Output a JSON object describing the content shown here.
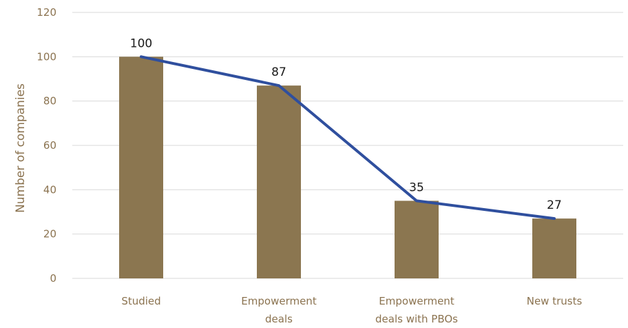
{
  "chart_data": {
    "type": "bar",
    "categories": [
      [
        "Studied"
      ],
      [
        "Empowerment",
        "deals"
      ],
      [
        "Empowerment",
        "deals with PBOs"
      ],
      [
        "New trusts"
      ]
    ],
    "series": [
      {
        "kind": "bar",
        "values": [
          100,
          87,
          35,
          27
        ]
      },
      {
        "kind": "line",
        "values": [
          100,
          87,
          35,
          27
        ]
      }
    ],
    "data_labels": [
      "100",
      "87",
      "35",
      "27"
    ],
    "title": "",
    "xlabel": "",
    "ylabel": "Number of companies",
    "ylim": [
      0,
      120
    ],
    "yticks": [
      0,
      20,
      40,
      60,
      80,
      100,
      120
    ],
    "grid": true,
    "legend": "none",
    "colors": {
      "bar": "#8b7650",
      "line": "#2f4f9e",
      "axis_text": "#8b7350",
      "grid": "#d9d9d9"
    }
  }
}
